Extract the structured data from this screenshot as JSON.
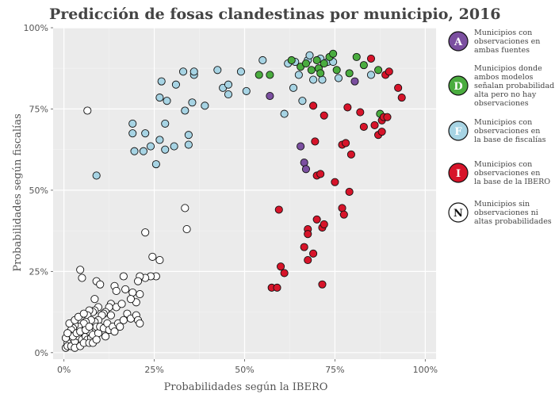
{
  "chart_data": {
    "type": "scatter",
    "title": "Predicción de fosas clandestinas por municipio, 2016",
    "xlabel": "Probabilidades según la IBERO",
    "ylabel": "Probabilidades según fiscalías",
    "xlim": [
      -0.03,
      1.03
    ],
    "ylim": [
      -0.02,
      1.0
    ],
    "x_ticks": [
      0,
      0.25,
      0.5,
      0.75,
      1.0
    ],
    "x_tick_labels": [
      "0%",
      "25%",
      "50%",
      "75%",
      "100%"
    ],
    "y_ticks": [
      0,
      0.25,
      0.5,
      0.75,
      1.0
    ],
    "y_tick_labels": [
      "0%",
      "25%",
      "50%",
      "75%",
      "100%"
    ],
    "legend_position": "right",
    "series": [
      {
        "key": "A",
        "name": "Municipios con observaciones en ambas fuentes",
        "color": "#7b4fa0",
        "points": [
          [
            0.57,
            0.79
          ],
          [
            0.655,
            0.635
          ],
          [
            0.665,
            0.585
          ],
          [
            0.67,
            0.565
          ],
          [
            0.805,
            0.835
          ]
        ]
      },
      {
        "key": "D",
        "name": "Municipios donde ambos modelos señalan probabilidad alta pero no hay observaciones",
        "color": "#4aac3f",
        "points": [
          [
            0.54,
            0.855
          ],
          [
            0.57,
            0.855
          ],
          [
            0.63,
            0.9
          ],
          [
            0.655,
            0.88
          ],
          [
            0.67,
            0.89
          ],
          [
            0.685,
            0.87
          ],
          [
            0.7,
            0.9
          ],
          [
            0.705,
            0.875
          ],
          [
            0.71,
            0.86
          ],
          [
            0.72,
            0.89
          ],
          [
            0.735,
            0.91
          ],
          [
            0.745,
            0.92
          ],
          [
            0.755,
            0.87
          ],
          [
            0.79,
            0.86
          ],
          [
            0.81,
            0.91
          ],
          [
            0.83,
            0.885
          ],
          [
            0.87,
            0.87
          ],
          [
            0.875,
            0.735
          ]
        ]
      },
      {
        "key": "F",
        "name": "Municipios con observaciones en la base de fiscalías",
        "color": "#a7d4e4",
        "points": [
          [
            0.09,
            0.545
          ],
          [
            0.19,
            0.705
          ],
          [
            0.19,
            0.675
          ],
          [
            0.195,
            0.62
          ],
          [
            0.22,
            0.62
          ],
          [
            0.225,
            0.675
          ],
          [
            0.24,
            0.635
          ],
          [
            0.255,
            0.58
          ],
          [
            0.265,
            0.655
          ],
          [
            0.265,
            0.785
          ],
          [
            0.27,
            0.835
          ],
          [
            0.28,
            0.625
          ],
          [
            0.28,
            0.705
          ],
          [
            0.285,
            0.775
          ],
          [
            0.305,
            0.635
          ],
          [
            0.31,
            0.825
          ],
          [
            0.33,
            0.865
          ],
          [
            0.335,
            0.745
          ],
          [
            0.345,
            0.64
          ],
          [
            0.345,
            0.67
          ],
          [
            0.355,
            0.77
          ],
          [
            0.36,
            0.855
          ],
          [
            0.36,
            0.865
          ],
          [
            0.39,
            0.76
          ],
          [
            0.425,
            0.87
          ],
          [
            0.44,
            0.815
          ],
          [
            0.455,
            0.795
          ],
          [
            0.455,
            0.825
          ],
          [
            0.49,
            0.865
          ],
          [
            0.505,
            0.805
          ],
          [
            0.55,
            0.9
          ],
          [
            0.61,
            0.735
          ],
          [
            0.62,
            0.89
          ],
          [
            0.635,
            0.815
          ],
          [
            0.64,
            0.895
          ],
          [
            0.65,
            0.855
          ],
          [
            0.66,
            0.775
          ],
          [
            0.675,
            0.9
          ],
          [
            0.68,
            0.915
          ],
          [
            0.69,
            0.84
          ],
          [
            0.71,
            0.905
          ],
          [
            0.715,
            0.84
          ],
          [
            0.73,
            0.895
          ],
          [
            0.745,
            0.895
          ],
          [
            0.76,
            0.845
          ],
          [
            0.85,
            0.855
          ]
        ]
      },
      {
        "key": "I",
        "name": "Municipios con observaciones en la base de la IBERO",
        "color": "#d7142a",
        "points": [
          [
            0.575,
            0.2
          ],
          [
            0.59,
            0.2
          ],
          [
            0.595,
            0.44
          ],
          [
            0.6,
            0.265
          ],
          [
            0.61,
            0.245
          ],
          [
            0.665,
            0.325
          ],
          [
            0.675,
            0.285
          ],
          [
            0.675,
            0.38
          ],
          [
            0.675,
            0.365
          ],
          [
            0.69,
            0.305
          ],
          [
            0.69,
            0.76
          ],
          [
            0.695,
            0.65
          ],
          [
            0.7,
            0.41
          ],
          [
            0.7,
            0.545
          ],
          [
            0.71,
            0.55
          ],
          [
            0.715,
            0.21
          ],
          [
            0.715,
            0.385
          ],
          [
            0.72,
            0.395
          ],
          [
            0.72,
            0.73
          ],
          [
            0.75,
            0.525
          ],
          [
            0.77,
            0.64
          ],
          [
            0.77,
            0.445
          ],
          [
            0.775,
            0.425
          ],
          [
            0.78,
            0.645
          ],
          [
            0.785,
            0.755
          ],
          [
            0.79,
            0.495
          ],
          [
            0.795,
            0.61
          ],
          [
            0.82,
            0.74
          ],
          [
            0.83,
            0.695
          ],
          [
            0.85,
            0.905
          ],
          [
            0.86,
            0.7
          ],
          [
            0.87,
            0.67
          ],
          [
            0.88,
            0.68
          ],
          [
            0.88,
            0.715
          ],
          [
            0.885,
            0.725
          ],
          [
            0.89,
            0.855
          ],
          [
            0.895,
            0.725
          ],
          [
            0.9,
            0.865
          ],
          [
            0.925,
            0.815
          ],
          [
            0.935,
            0.785
          ]
        ]
      },
      {
        "key": "N",
        "name": "Municipios sin observaciones ni altas probabilidades",
        "color": "#ffffff",
        "points": [
          [
            0.065,
            0.745
          ],
          [
            0.335,
            0.445
          ],
          [
            0.34,
            0.38
          ],
          [
            0.225,
            0.37
          ],
          [
            0.245,
            0.295
          ],
          [
            0.265,
            0.285
          ],
          [
            0.255,
            0.235
          ],
          [
            0.24,
            0.235
          ],
          [
            0.225,
            0.23
          ],
          [
            0.21,
            0.235
          ],
          [
            0.205,
            0.22
          ],
          [
            0.19,
            0.185
          ],
          [
            0.21,
            0.18
          ],
          [
            0.2,
            0.155
          ],
          [
            0.165,
            0.235
          ],
          [
            0.17,
            0.195
          ],
          [
            0.185,
            0.165
          ],
          [
            0.14,
            0.205
          ],
          [
            0.145,
            0.19
          ],
          [
            0.13,
            0.15
          ],
          [
            0.125,
            0.14
          ],
          [
            0.115,
            0.125
          ],
          [
            0.09,
            0.22
          ],
          [
            0.1,
            0.21
          ],
          [
            0.085,
            0.165
          ],
          [
            0.095,
            0.14
          ],
          [
            0.11,
            0.12
          ],
          [
            0.105,
            0.115
          ],
          [
            0.085,
            0.13
          ],
          [
            0.08,
            0.125
          ],
          [
            0.07,
            0.13
          ],
          [
            0.065,
            0.115
          ],
          [
            0.095,
            0.1
          ],
          [
            0.085,
            0.095
          ],
          [
            0.075,
            0.1
          ],
          [
            0.06,
            0.095
          ],
          [
            0.05,
            0.23
          ],
          [
            0.045,
            0.255
          ],
          [
            0.055,
            0.09
          ],
          [
            0.04,
            0.08
          ],
          [
            0.03,
            0.085
          ],
          [
            0.025,
            0.075
          ],
          [
            0.02,
            0.07
          ],
          [
            0.015,
            0.055
          ],
          [
            0.015,
            0.04
          ],
          [
            0.01,
            0.03
          ],
          [
            0.005,
            0.045
          ],
          [
            0.005,
            0.015
          ],
          [
            0.01,
            0.02
          ],
          [
            0.02,
            0.02
          ],
          [
            0.03,
            0.035
          ],
          [
            0.04,
            0.05
          ],
          [
            0.05,
            0.04
          ],
          [
            0.055,
            0.06
          ],
          [
            0.06,
            0.05
          ],
          [
            0.065,
            0.04
          ],
          [
            0.07,
            0.065
          ],
          [
            0.075,
            0.045
          ],
          [
            0.08,
            0.055
          ],
          [
            0.09,
            0.08
          ],
          [
            0.095,
            0.06
          ],
          [
            0.1,
            0.08
          ],
          [
            0.11,
            0.075
          ],
          [
            0.12,
            0.09
          ],
          [
            0.125,
            0.07
          ],
          [
            0.135,
            0.08
          ],
          [
            0.14,
            0.065
          ],
          [
            0.15,
            0.09
          ],
          [
            0.155,
            0.08
          ],
          [
            0.165,
            0.1
          ],
          [
            0.175,
            0.12
          ],
          [
            0.185,
            0.105
          ],
          [
            0.2,
            0.115
          ],
          [
            0.205,
            0.1
          ],
          [
            0.21,
            0.09
          ],
          [
            0.03,
            0.015
          ],
          [
            0.045,
            0.02
          ],
          [
            0.025,
            0.05
          ],
          [
            0.035,
            0.06
          ],
          [
            0.045,
            0.065
          ],
          [
            0.055,
            0.03
          ],
          [
            0.06,
            0.07
          ],
          [
            0.07,
            0.03
          ],
          [
            0.08,
            0.03
          ],
          [
            0.09,
            0.04
          ],
          [
            0.01,
            0.06
          ],
          [
            0.015,
            0.09
          ],
          [
            0.03,
            0.1
          ],
          [
            0.04,
            0.11
          ],
          [
            0.055,
            0.12
          ],
          [
            0.07,
            0.08
          ],
          [
            0.115,
            0.05
          ],
          [
            0.13,
            0.115
          ],
          [
            0.145,
            0.14
          ],
          [
            0.16,
            0.15
          ]
        ]
      }
    ]
  }
}
